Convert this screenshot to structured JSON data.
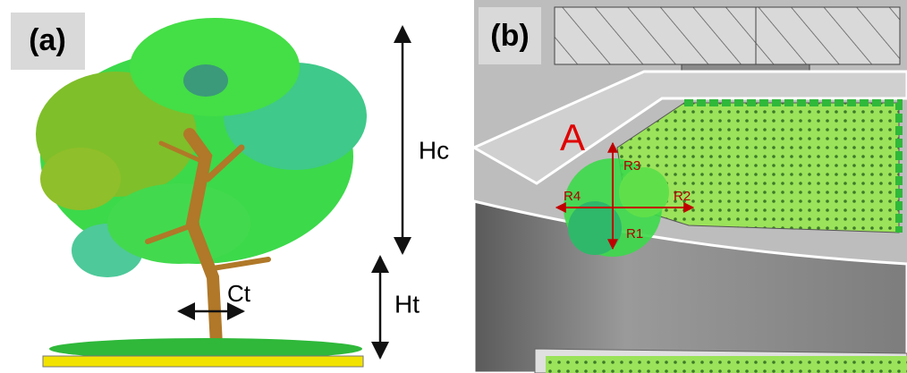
{
  "panel_a": {
    "label": "(a)",
    "dimensions": {
      "crown_height": "Hc",
      "trunk_height": "Ht",
      "trunk_circumference": "Ct"
    }
  },
  "panel_b": {
    "label": "(b)",
    "tree": {
      "label": "A",
      "radii": [
        "R1",
        "R2",
        "R3",
        "R4"
      ]
    }
  }
}
